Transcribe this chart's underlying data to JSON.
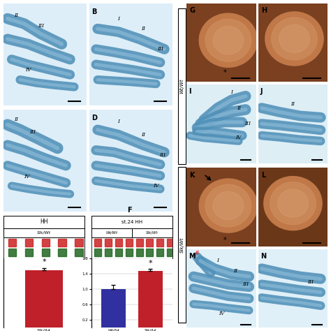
{
  "panel_labels": [
    "B",
    "D",
    "F",
    "G",
    "H",
    "I",
    "J",
    "K",
    "L",
    "M",
    "N"
  ],
  "bar_chart_left": {
    "bars": [
      {
        "label": "Slk/Δ4",
        "value": 1.65,
        "color": "#c0202a",
        "error": 0.07
      }
    ],
    "star": "*",
    "title_box": "HH",
    "subtitle_box": "Slk/Wt"
  },
  "bar_chart_right": {
    "bars": [
      {
        "label": "Wt/Δ4",
        "value": 1.0,
        "color": "#3030a0",
        "error": 0.1
      },
      {
        "label": "Slk/Δ4",
        "value": 1.47,
        "color": "#c0202a",
        "error": 0.05
      }
    ],
    "star": "*",
    "ylim": [
      0.0,
      1.8
    ],
    "yticks": [
      0.2,
      0.6,
      1.0,
      1.4,
      1.8
    ],
    "title_box": "st.24 HH",
    "subtitle_boxes": [
      "Wt/Wt",
      "Slk/Wt"
    ]
  },
  "bone_bg": "#e8f4f8",
  "bone_color": "#5090b8",
  "embryo_bg_dark": "#7a4020",
  "embryo_lump_color": "#c07040",
  "gel_red": "#cc2222",
  "gel_green": "#226622",
  "background": "#ffffff"
}
